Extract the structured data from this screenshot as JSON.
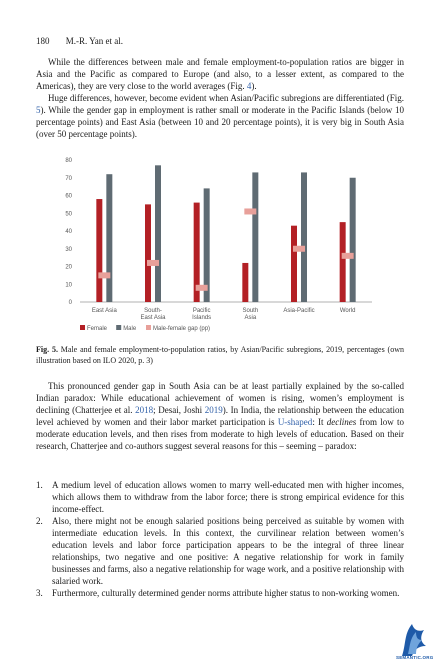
{
  "header": {
    "page_number": "180",
    "authors": "M.-R. Yan et al."
  },
  "paragraph1": "While the differences between male and female employment-to-population ratios are bigger in Asia and the Pacific as compared to Europe (and also, to a lesser extent, as compared to the Americas), they are very close to the world averages (Fig. ",
  "paragraph1_link": "4",
  "paragraph1_end": ").",
  "paragraph2_a": "Huge differences, however, become evident when Asian/Pacific subregions are differentiated (Fig. ",
  "paragraph2_link": "5",
  "paragraph2_b": "). While the gender gap in employment is rather small or moderate in the Pacific Islands (below 10 percentage points) and East Asia (between 10 and 20 percentage points), it is very big in South Asia (over 50 percentage points).",
  "chart_data": {
    "type": "bar",
    "categories": [
      "East Asia",
      "South-\nEast Asia",
      "Pacific\nIslands",
      "South\nAsia",
      "Asia-Pacific",
      "World"
    ],
    "series": [
      {
        "name": "Female",
        "values": [
          58,
          55,
          56,
          22,
          43,
          45
        ]
      },
      {
        "name": "Male",
        "values": [
          72,
          77,
          64,
          73,
          73,
          70
        ]
      },
      {
        "name": "Male-female gap (pp)",
        "values": [
          15,
          22,
          8,
          51,
          30,
          26
        ]
      }
    ],
    "ylim": [
      0,
      80
    ],
    "yticks": [
      0,
      10,
      20,
      30,
      40,
      50,
      60,
      70,
      80
    ],
    "grid": false,
    "legend": "bottom-left",
    "colors": {
      "female": "#b32025",
      "male": "#5f6b73",
      "gap": "#e8a09a"
    }
  },
  "caption": {
    "label": "Fig. 5.",
    "text": " Male and female employment-to-population ratios, by Asian/Pacific subregions, 2019, percentages (own illustration based on ILO 2020, p. 3)"
  },
  "paragraph3": {
    "a": "This pronounced gender gap in South Asia can be at least partially explained by the so-called Indian paradox: While educational achievement of women is rising, women’s employment is declining (Chatterjee et al. ",
    "link1": "2018",
    "b": "; Desai, Joshi ",
    "link2": "2019",
    "c": "). In India, the relationship between the education level achieved by women and their labor market participation is ",
    "link3": "U-shaped",
    "d": ": It ",
    "emph": "declines",
    "e": " from low to moderate education levels, and then rises from moderate to high levels of education. Based on their research, Chatterjee and co-authors suggest several reasons for this – seeming – paradox:"
  },
  "list": [
    {
      "num": "1.",
      "text": "A medium level of education allows women to marry well-educated men with higher incomes, which allows them to withdraw from the labor force; there is strong empirical evidence for this income-effect."
    },
    {
      "num": "2.",
      "text": "Also, there might not be enough salaried positions being perceived as suitable by women with intermediate education levels. In this context, the curvilinear relation between women’s education levels and labor force participation appears to be the integral of three linear relationships, two negative and one positive: A negative relationship for work in family businesses and farms, also a negative relationship for wage work, and a positive relationship with salaried work."
    },
    {
      "num": "3.",
      "text": "Furthermore, culturally determined gender norms attribute higher status to non-working women."
    }
  ],
  "logo_text": "SEMANTIC.ORG"
}
